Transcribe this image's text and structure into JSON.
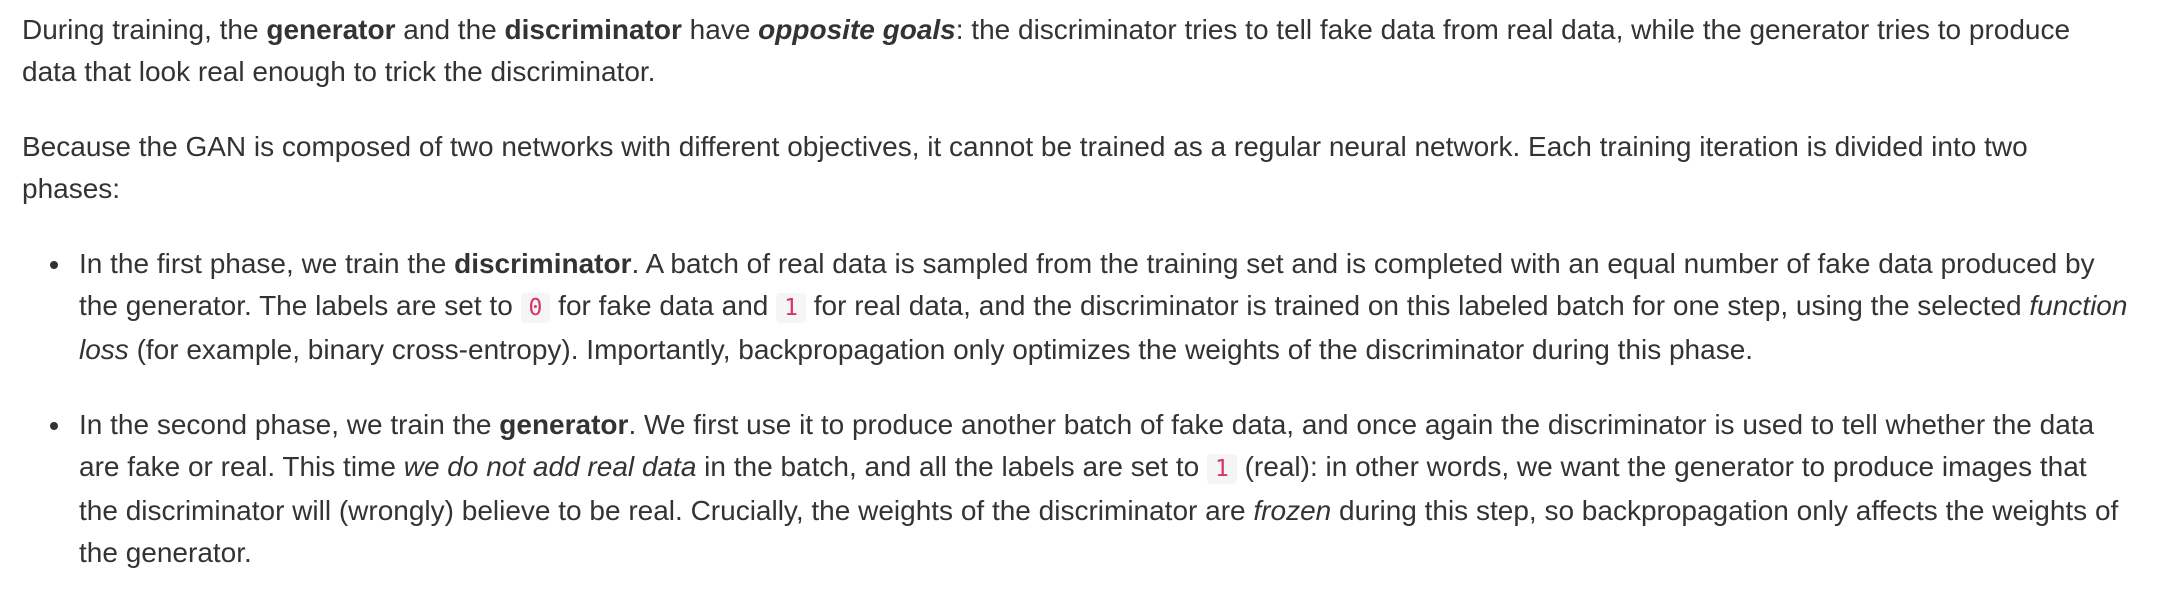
{
  "para1": {
    "t1": "During training, the ",
    "b1": "generator",
    "t2": " and the ",
    "b2": "discriminator",
    "t3": " have ",
    "bi1": "opposite goals",
    "t4": ": the discriminator tries to tell fake data from real data, while the generator tries to produce data that look real enough to trick the discriminator."
  },
  "para2": {
    "t1": "Because the GAN is composed of two networks with different objectives, it cannot be trained as a regular neural network. Each training iteration is divided into two phases:"
  },
  "bullet1": {
    "t1": "In the first phase, we train the ",
    "b1": "discriminator",
    "t2": ". A batch of real data is sampled from the training set and is completed with an equal number of fake data produced by the generator. The labels are set to ",
    "code1": "0",
    "t3": " for fake data and ",
    "code2": "1",
    "t4": " for real data, and the discriminator is trained on this labeled batch for one step, using the selected ",
    "i1": "function loss",
    "t5": " (for example, binary cross-entropy). Importantly, backpropagation only optimizes the weights of the discriminator during this phase."
  },
  "bullet2": {
    "t1": "In the second phase, we train the ",
    "b1": "generator",
    "t2": ". We first use it to produce another batch of fake data, and once again the discriminator is used to tell whether the data are fake or real. This time ",
    "i1": "we do not add real data",
    "t3": " in the batch, and all the labels are set to ",
    "code1": "1",
    "t4": " (real): in other words, we want the generator to produce images that the discriminator will (wrongly) believe to be real. Crucially, the weights of the discriminator are ",
    "i2": "frozen",
    "t5": " during this step, so backpropagation only affects the weights of the generator."
  }
}
